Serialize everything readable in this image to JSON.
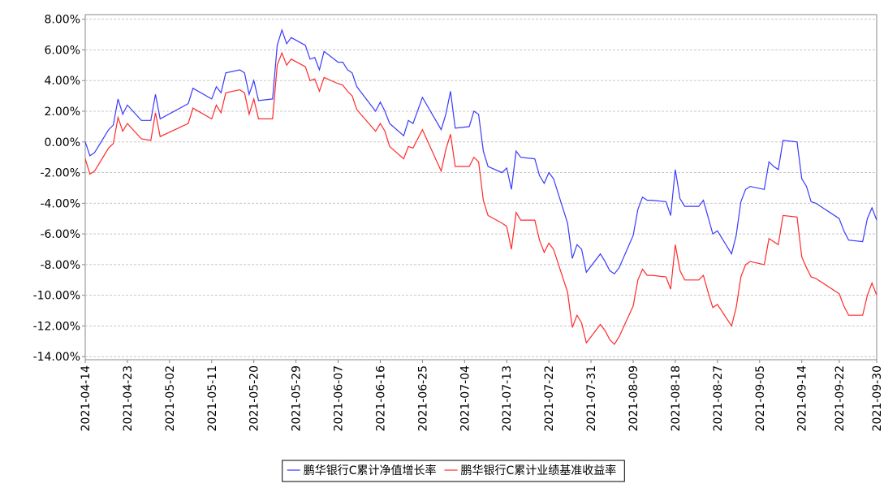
{
  "chart_data": {
    "type": "line",
    "x": [
      "2021-04-14",
      "2021-04-15",
      "2021-04-16",
      "2021-04-19",
      "2021-04-20",
      "2021-04-21",
      "2021-04-22",
      "2021-04-23",
      "2021-04-26",
      "2021-04-28",
      "2021-04-29",
      "2021-04-30",
      "2021-05-06",
      "2021-05-07",
      "2021-05-11",
      "2021-05-12",
      "2021-05-13",
      "2021-05-14",
      "2021-05-17",
      "2021-05-18",
      "2021-05-19",
      "2021-05-20",
      "2021-05-21",
      "2021-05-24",
      "2021-05-25",
      "2021-05-26",
      "2021-05-27",
      "2021-05-28",
      "2021-05-31",
      "2021-06-01",
      "2021-06-02",
      "2021-06-03",
      "2021-06-04",
      "2021-06-07",
      "2021-06-08",
      "2021-06-09",
      "2021-06-10",
      "2021-06-11",
      "2021-06-15",
      "2021-06-16",
      "2021-06-17",
      "2021-06-18",
      "2021-06-21",
      "2021-06-22",
      "2021-06-23",
      "2021-06-25",
      "2021-06-29",
      "2021-06-30",
      "2021-07-01",
      "2021-07-02",
      "2021-07-05",
      "2021-07-06",
      "2021-07-07",
      "2021-07-08",
      "2021-07-09",
      "2021-07-12",
      "2021-07-13",
      "2021-07-14",
      "2021-07-15",
      "2021-07-16",
      "2021-07-19",
      "2021-07-20",
      "2021-07-21",
      "2021-07-22",
      "2021-07-23",
      "2021-07-26",
      "2021-07-27",
      "2021-07-28",
      "2021-07-29",
      "2021-07-30",
      "2021-08-02",
      "2021-08-03",
      "2021-08-04",
      "2021-08-05",
      "2021-08-06",
      "2021-08-09",
      "2021-08-10",
      "2021-08-11",
      "2021-08-12",
      "2021-08-13",
      "2021-08-16",
      "2021-08-17",
      "2021-08-18",
      "2021-08-19",
      "2021-08-20",
      "2021-08-23",
      "2021-08-24",
      "2021-08-25",
      "2021-08-26",
      "2021-08-27",
      "2021-08-30",
      "2021-08-31",
      "2021-09-01",
      "2021-09-02",
      "2021-09-03",
      "2021-09-06",
      "2021-09-07",
      "2021-09-08",
      "2021-09-09",
      "2021-09-10",
      "2021-09-13",
      "2021-09-14",
      "2021-09-15",
      "2021-09-16",
      "2021-09-17",
      "2021-09-22",
      "2021-09-23",
      "2021-09-24",
      "2021-09-27",
      "2021-09-28",
      "2021-09-29",
      "2021-09-30"
    ],
    "series": [
      {
        "name": "鹏华银行C累计净值增长率",
        "color": "#3a3aff",
        "values": [
          0.0,
          -0.9,
          -0.7,
          0.8,
          1.1,
          2.8,
          1.8,
          2.4,
          1.4,
          1.4,
          3.1,
          1.5,
          2.5,
          3.5,
          2.8,
          3.6,
          3.2,
          4.5,
          4.7,
          4.5,
          3.1,
          4.0,
          2.7,
          2.8,
          6.3,
          7.3,
          6.4,
          6.8,
          6.3,
          5.4,
          5.5,
          4.7,
          5.9,
          5.2,
          5.2,
          4.7,
          4.5,
          3.6,
          2.0,
          2.6,
          2.0,
          1.2,
          0.4,
          1.4,
          1.2,
          2.9,
          0.8,
          1.8,
          3.3,
          0.9,
          1.0,
          2.0,
          1.8,
          -0.6,
          -1.6,
          -2.0,
          -1.7,
          -3.1,
          -0.6,
          -1.0,
          -1.1,
          -2.2,
          -2.7,
          -2.0,
          -2.4,
          -5.3,
          -7.6,
          -6.7,
          -7.0,
          -8.5,
          -7.3,
          -7.8,
          -8.4,
          -8.6,
          -8.2,
          -6.1,
          -4.4,
          -3.6,
          -3.8,
          -3.8,
          -3.9,
          -4.8,
          -1.8,
          -3.7,
          -4.2,
          -4.2,
          -3.8,
          -4.9,
          -6.0,
          -5.8,
          -7.3,
          -6.1,
          -3.9,
          -3.1,
          -2.9,
          -3.1,
          -1.3,
          -1.6,
          -1.8,
          0.1,
          0.0,
          -2.4,
          -2.9,
          -3.9,
          -4.0,
          -5.0,
          -5.8,
          -6.4,
          -6.5,
          -5.0,
          -4.3,
          -5.1
        ]
      },
      {
        "name": "鹏华银行C累计业绩基准收益率",
        "color": "#ff2a2a",
        "values": [
          -1.1,
          -2.1,
          -1.9,
          -0.4,
          -0.1,
          1.6,
          0.7,
          1.2,
          0.2,
          0.1,
          1.9,
          0.35,
          1.2,
          2.2,
          1.5,
          2.4,
          1.9,
          3.2,
          3.4,
          3.2,
          1.8,
          2.8,
          1.5,
          1.5,
          5.0,
          5.8,
          5.0,
          5.4,
          4.9,
          4.0,
          4.1,
          3.3,
          4.2,
          3.8,
          3.7,
          3.3,
          3.0,
          2.1,
          0.7,
          1.2,
          0.7,
          -0.3,
          -1.1,
          -0.3,
          -0.4,
          0.8,
          -1.9,
          -0.5,
          0.5,
          -1.6,
          -1.6,
          -1.0,
          -1.3,
          -3.8,
          -4.8,
          -5.3,
          -5.5,
          -7.0,
          -4.6,
          -5.1,
          -5.1,
          -6.4,
          -7.2,
          -6.6,
          -7.0,
          -9.8,
          -12.1,
          -11.3,
          -11.8,
          -13.1,
          -11.9,
          -12.3,
          -12.9,
          -13.2,
          -12.7,
          -10.7,
          -9.0,
          -8.3,
          -8.7,
          -8.7,
          -8.8,
          -9.6,
          -6.7,
          -8.4,
          -9.0,
          -9.0,
          -8.7,
          -9.8,
          -10.8,
          -10.6,
          -12.0,
          -10.8,
          -8.8,
          -8.0,
          -7.8,
          -8.0,
          -6.3,
          -6.5,
          -6.7,
          -4.8,
          -4.9,
          -7.5,
          -8.2,
          -8.8,
          -8.9,
          -9.9,
          -10.7,
          -11.3,
          -11.3,
          -10.0,
          -9.2,
          -10.0
        ]
      }
    ],
    "xlim": [
      "2021-04-14",
      "2021-09-30"
    ],
    "xticks": [
      "2021-04-14",
      "2021-04-23",
      "2021-05-02",
      "2021-05-11",
      "2021-05-20",
      "2021-05-29",
      "2021-06-07",
      "2021-06-16",
      "2021-06-25",
      "2021-07-04",
      "2021-07-13",
      "2021-07-22",
      "2021-07-31",
      "2021-08-09",
      "2021-08-18",
      "2021-08-27",
      "2021-09-05",
      "2021-09-14",
      "2021-09-22",
      "2021-09-30"
    ],
    "ylim": [
      -14.2,
      8.3
    ],
    "yticks": [
      {
        "value": -14,
        "label": "-14.00%"
      },
      {
        "value": -12,
        "label": "-12.00%"
      },
      {
        "value": -10,
        "label": "-10.00%"
      },
      {
        "value": -8,
        "label": "-8.00%"
      },
      {
        "value": -6,
        "label": "-6.00%"
      },
      {
        "value": -4,
        "label": "-4.00%"
      },
      {
        "value": -2,
        "label": "-2.00%"
      },
      {
        "value": 0,
        "label": "0.00%"
      },
      {
        "value": 2,
        "label": "2.00%"
      },
      {
        "value": 4,
        "label": "4.00%"
      },
      {
        "value": 6,
        "label": "6.00%"
      },
      {
        "value": 8,
        "label": "8.00%"
      }
    ],
    "grid": true,
    "legend": "bottom"
  }
}
